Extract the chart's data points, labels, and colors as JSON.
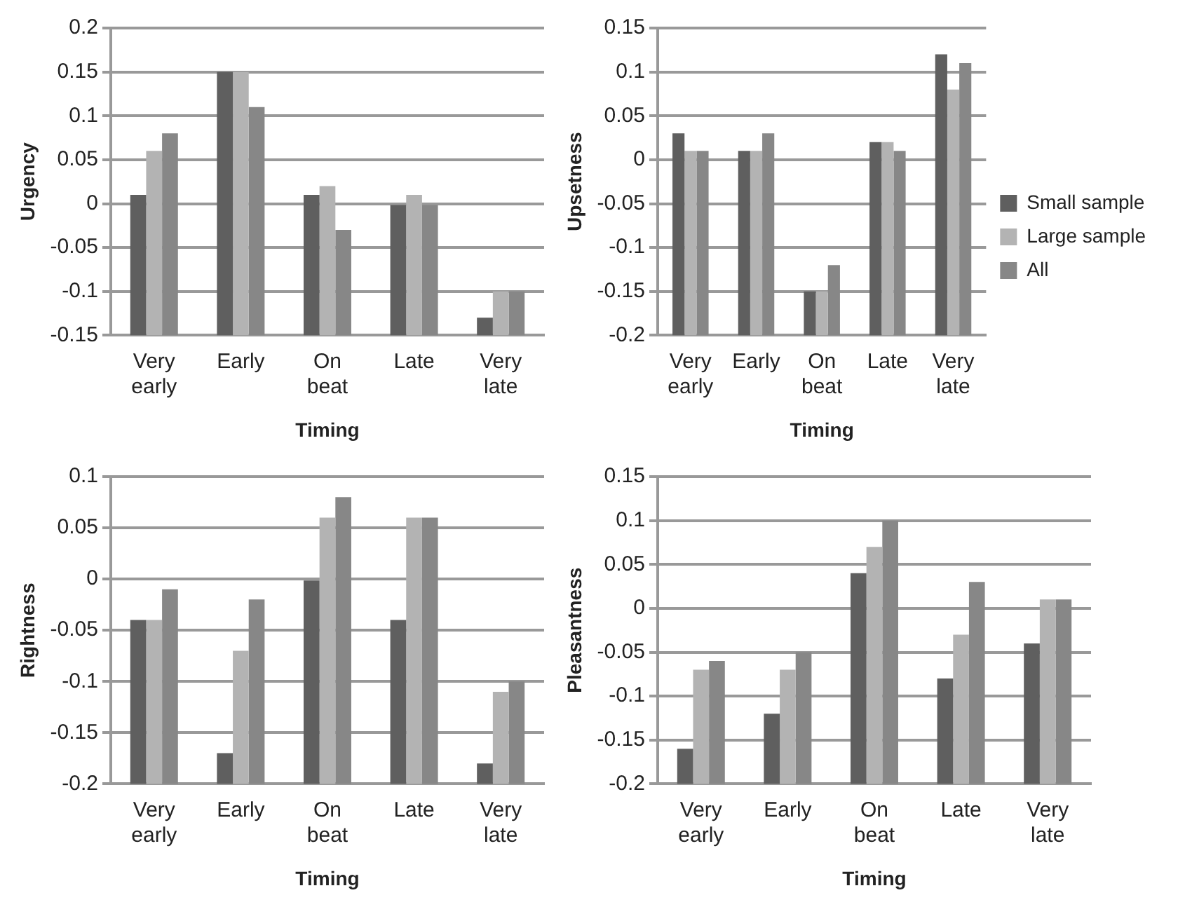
{
  "chart_data": [
    {
      "type": "bar",
      "xlabel": "Timing",
      "ylabel": "Urgency",
      "categories": [
        "Very early",
        "Early",
        "On beat",
        "Late",
        "Very late"
      ],
      "series": [
        {
          "color": "#5f5f5f",
          "base": [
            -0.15,
            -0.15,
            -0.15,
            -0.15,
            -0.15
          ],
          "values": [
            0.16,
            0.3,
            0.16,
            0.15,
            0.02
          ]
        },
        {
          "color": "#b3b3b3",
          "base": [
            -0.15,
            -0.15,
            -0.15,
            -0.15,
            -0.15
          ],
          "values": [
            0.21,
            0.3,
            0.17,
            0.16,
            0.05
          ]
        },
        {
          "color": "#878787",
          "base": [
            -0.15,
            -0.15,
            -0.15,
            -0.15,
            -0.15
          ],
          "values": [
            0.23,
            0.26,
            0.12,
            0.15,
            0.05
          ]
        }
      ],
      "ylim": [
        -0.15,
        0.2
      ],
      "yticks": [
        -0.15,
        -0.1,
        -0.05,
        0,
        0.05,
        0.1,
        0.15,
        0.2
      ],
      "grid": "y",
      "legend": false
    },
    {
      "type": "bar",
      "xlabel": "Timing",
      "ylabel": "Upsetness",
      "categories": [
        "Very early",
        "Early",
        "On beat",
        "Late",
        "Very late"
      ],
      "series": [
        {
          "name": "Small sample",
          "color": "#5f5f5f",
          "base": [
            -0.2,
            -0.2,
            -0.2,
            -0.2,
            -0.2
          ],
          "values": [
            0.23,
            0.21,
            0.05,
            0.22,
            0.32
          ]
        },
        {
          "name": "Large sample",
          "color": "#b3b3b3",
          "base": [
            -0.2,
            -0.2,
            -0.2,
            -0.2,
            -0.2
          ],
          "values": [
            0.21,
            0.21,
            0.05,
            0.22,
            0.28
          ]
        },
        {
          "name": "All",
          "color": "#878787",
          "base": [
            -0.2,
            -0.2,
            -0.2,
            -0.2,
            -0.2
          ],
          "values": [
            0.21,
            0.23,
            0.08,
            0.21,
            0.31
          ]
        }
      ],
      "ylim": [
        -0.2,
        0.15
      ],
      "yticks": [
        -0.2,
        -0.15,
        -0.1,
        -0.05,
        0,
        0.05,
        0.1,
        0.15
      ],
      "grid": "y",
      "legend": "right"
    },
    {
      "type": "bar",
      "xlabel": "Timing",
      "ylabel": "Rightness",
      "categories": [
        "Very early",
        "Early",
        "On beat",
        "Late",
        "Very late"
      ],
      "series": [
        {
          "color": "#5f5f5f",
          "base": [
            -0.2,
            -0.2,
            -0.2,
            -0.2,
            -0.2
          ],
          "values": [
            0.16,
            0.03,
            0.2,
            0.16,
            0.02
          ]
        },
        {
          "color": "#b3b3b3",
          "base": [
            -0.2,
            -0.2,
            -0.2,
            -0.2,
            -0.2
          ],
          "values": [
            0.16,
            0.13,
            0.26,
            0.26,
            0.09
          ]
        },
        {
          "color": "#878787",
          "base": [
            -0.2,
            -0.2,
            -0.2,
            -0.2,
            -0.2
          ],
          "values": [
            0.19,
            0.18,
            0.28,
            0.26,
            0.1
          ]
        }
      ],
      "ylim": [
        -0.2,
        0.1
      ],
      "yticks": [
        -0.2,
        -0.15,
        -0.1,
        -0.05,
        0,
        0.05,
        0.1
      ],
      "grid": "y",
      "legend": false
    },
    {
      "type": "bar",
      "xlabel": "Timing",
      "ylabel": "Pleasantness",
      "categories": [
        "Very early",
        "Early",
        "On beat",
        "Late",
        "Very late"
      ],
      "series": [
        {
          "color": "#5f5f5f",
          "base": [
            -0.2,
            -0.2,
            -0.2,
            -0.2,
            -0.2
          ],
          "values": [
            0.04,
            0.08,
            0.24,
            0.12,
            0.16
          ]
        },
        {
          "color": "#b3b3b3",
          "base": [
            -0.2,
            -0.2,
            -0.2,
            -0.2,
            -0.2
          ],
          "values": [
            0.13,
            0.13,
            0.27,
            0.17,
            0.21
          ]
        },
        {
          "color": "#878787",
          "base": [
            -0.2,
            -0.2,
            -0.2,
            -0.2,
            -0.2
          ],
          "values": [
            0.14,
            0.15,
            0.3,
            0.23,
            0.21
          ]
        }
      ],
      "ylim": [
        -0.2,
        0.15
      ],
      "yticks": [
        -0.2,
        -0.15,
        -0.1,
        -0.05,
        0,
        0.05,
        0.1,
        0.15
      ],
      "grid": "y",
      "legend": false
    }
  ]
}
